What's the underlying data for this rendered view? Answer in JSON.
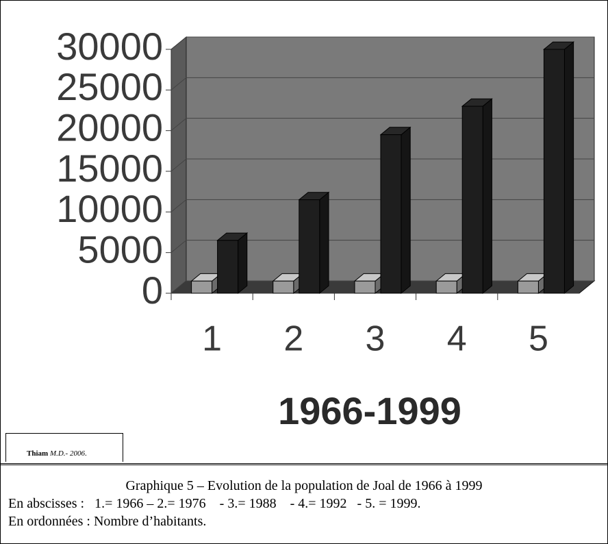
{
  "chart_data": {
    "type": "bar",
    "categories": [
      "1",
      "2",
      "3",
      "4",
      "5"
    ],
    "series": [
      {
        "color": "#9a9a9a",
        "values": [
          1500,
          1500,
          1500,
          1500,
          1500
        ]
      },
      {
        "color": "#1e1e1e",
        "values": [
          6500,
          11500,
          19500,
          23000,
          30000
        ]
      }
    ],
    "ylim": [
      0,
      30000
    ],
    "yticks": [
      0,
      5000,
      10000,
      15000,
      20000,
      25000,
      30000
    ],
    "xlabel": "1966-1999",
    "grid": true
  },
  "credit": {
    "author": "Thiam",
    "ref": "M.D.- 2006",
    "end": "."
  },
  "caption": {
    "title": "Graphique 5 – Evolution de la population de Joal de 1966 à 1999",
    "line1": "En abscisses :   1.= 1966 – 2.= 1976    - 3.= 1988    - 4.= 1992   - 5. = 1999.",
    "line2": "En ordonnées : Nombre d’habitants."
  }
}
